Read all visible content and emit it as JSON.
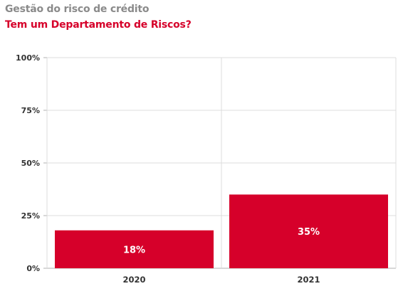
{
  "header": {
    "title": "Gestão do risco de crédito",
    "subtitle": "Tem um Departamento de Riscos?"
  },
  "colors": {
    "bar": "#d6002a",
    "title": "#8a8a8a",
    "subtitle": "#d6002a",
    "grid": "#dcdcdc",
    "axis": "#b0b0b0"
  },
  "chart_data": {
    "type": "bar",
    "title": "Tem um Departamento de Riscos?",
    "categories": [
      "2020",
      "2021"
    ],
    "values": [
      18,
      35
    ],
    "data_labels": [
      "18%",
      "35%"
    ],
    "ylim": [
      0,
      100
    ],
    "yticks": [
      0,
      25,
      50,
      75,
      100
    ],
    "ytick_labels": [
      "0%",
      "25%",
      "50%",
      "75%",
      "100%"
    ],
    "grid": true,
    "legend": "none"
  }
}
